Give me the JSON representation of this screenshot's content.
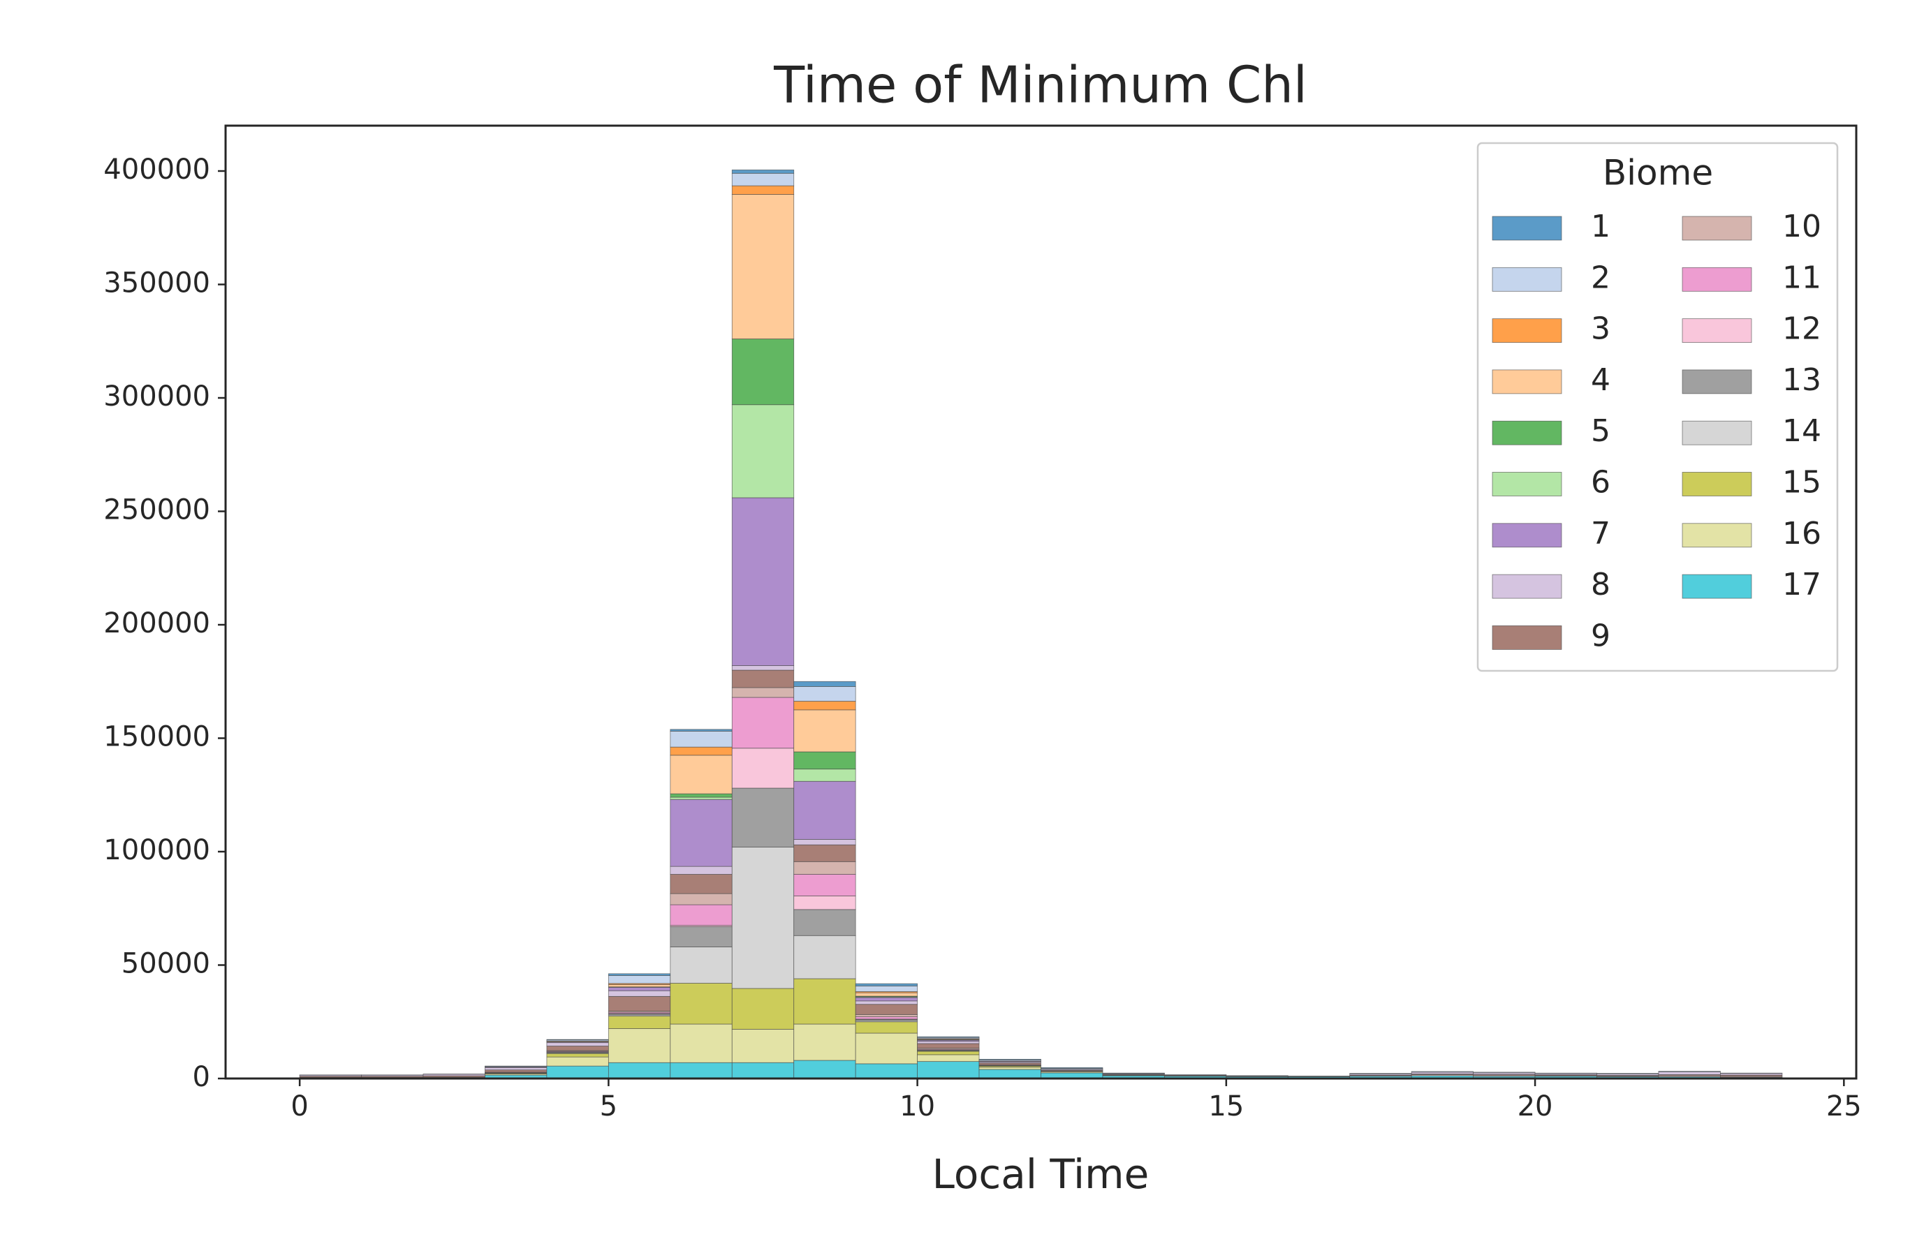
{
  "chart_data": {
    "type": "histogram",
    "title": "Time of Minimum Chl",
    "xlabel": "Local Time",
    "legend_title": "Biome",
    "legend_loc": "upper right",
    "bins": [
      0,
      1,
      2,
      3,
      4,
      5,
      6,
      7,
      8,
      9,
      10,
      11,
      12,
      13,
      14,
      15,
      16,
      17,
      18,
      19,
      20,
      21,
      22,
      23,
      24
    ],
    "xlim": [
      -1.2,
      25.2
    ],
    "ylim": [
      0,
      420000
    ],
    "xticks": [
      0,
      5,
      10,
      15,
      20,
      25
    ],
    "yticks": [
      0,
      50000,
      100000,
      150000,
      200000,
      250000,
      300000,
      350000,
      400000
    ],
    "stacked": true,
    "series": [
      {
        "name": "1",
        "color": "#5b9bc8",
        "values": [
          0,
          0,
          0,
          100,
          200,
          800,
          800,
          1500,
          2200,
          1000,
          300,
          300,
          300,
          100,
          0,
          0,
          0,
          0,
          0,
          0,
          0,
          0,
          0,
          0
        ]
      },
      {
        "name": "2",
        "color": "#c5d5ed",
        "values": [
          100,
          100,
          100,
          300,
          500,
          3500,
          7000,
          5500,
          6500,
          2500,
          500,
          500,
          400,
          200,
          200,
          200,
          100,
          300,
          300,
          300,
          300,
          300,
          300,
          200
        ]
      },
      {
        "name": "3",
        "color": "#ffa04a",
        "values": [
          0,
          0,
          0,
          0,
          100,
          500,
          3600,
          3800,
          3800,
          500,
          200,
          0,
          0,
          0,
          0,
          0,
          0,
          0,
          0,
          0,
          0,
          0,
          0,
          0
        ]
      },
      {
        "name": "4",
        "color": "#ffcb99",
        "values": [
          0,
          0,
          0,
          0,
          300,
          1000,
          17000,
          63700,
          18500,
          1500,
          300,
          100,
          0,
          0,
          0,
          0,
          0,
          0,
          0,
          0,
          0,
          0,
          0,
          0
        ]
      },
      {
        "name": "5",
        "color": "#62b762",
        "values": [
          0,
          0,
          0,
          0,
          0,
          100,
          1500,
          29000,
          7600,
          300,
          100,
          0,
          0,
          0,
          0,
          0,
          0,
          0,
          0,
          0,
          0,
          0,
          0,
          0
        ]
      },
      {
        "name": "6",
        "color": "#b3e6a6",
        "values": [
          0,
          0,
          0,
          0,
          0,
          100,
          1000,
          41000,
          5400,
          300,
          100,
          0,
          0,
          0,
          0,
          0,
          0,
          0,
          0,
          0,
          0,
          0,
          0,
          0
        ]
      },
      {
        "name": "7",
        "color": "#ae8dcc",
        "values": [
          0,
          0,
          0,
          300,
          300,
          1500,
          29500,
          74000,
          25600,
          1500,
          500,
          300,
          100,
          0,
          0,
          0,
          0,
          0,
          0,
          0,
          0,
          0,
          0,
          0
        ]
      },
      {
        "name": "8",
        "color": "#d5c4e0",
        "values": [
          500,
          500,
          700,
          1000,
          1500,
          2500,
          3500,
          2000,
          2400,
          1500,
          1000,
          500,
          400,
          300,
          200,
          100,
          100,
          500,
          800,
          700,
          500,
          600,
          1200,
          700
        ]
      },
      {
        "name": "9",
        "color": "#a87f76",
        "values": [
          500,
          500,
          600,
          1000,
          2000,
          6500,
          8500,
          7700,
          7400,
          4500,
          2000,
          800,
          300,
          200,
          100,
          0,
          0,
          200,
          300,
          300,
          300,
          300,
          400,
          500
        ]
      },
      {
        "name": "10",
        "color": "#d5b4ae",
        "values": [
          300,
          300,
          300,
          200,
          300,
          500,
          4900,
          4300,
          5600,
          1000,
          500,
          200,
          100,
          100,
          100,
          100,
          100,
          300,
          500,
          500,
          300,
          300,
          500,
          400
        ]
      },
      {
        "name": "11",
        "color": "#ed9dd0",
        "values": [
          0,
          0,
          0,
          100,
          300,
          500,
          9100,
          22400,
          9500,
          1000,
          300,
          100,
          0,
          0,
          0,
          0,
          0,
          0,
          0,
          0,
          0,
          0,
          0,
          0
        ]
      },
      {
        "name": "12",
        "color": "#f9c6db",
        "values": [
          0,
          0,
          0,
          0,
          100,
          200,
          500,
          17600,
          6000,
          200,
          100,
          0,
          0,
          0,
          0,
          0,
          0,
          0,
          0,
          0,
          0,
          0,
          0,
          0
        ]
      },
      {
        "name": "13",
        "color": "#a0a0a0",
        "values": [
          0,
          0,
          0,
          100,
          300,
          500,
          9000,
          26000,
          11500,
          500,
          300,
          100,
          0,
          0,
          0,
          0,
          0,
          0,
          0,
          0,
          0,
          0,
          0,
          0
        ]
      },
      {
        "name": "14",
        "color": "#d6d6d6",
        "values": [
          0,
          0,
          0,
          100,
          300,
          500,
          16000,
          62300,
          19000,
          500,
          200,
          100,
          0,
          0,
          0,
          0,
          0,
          0,
          0,
          0,
          0,
          0,
          0,
          0
        ]
      },
      {
        "name": "15",
        "color": "#cccc5a",
        "values": [
          0,
          0,
          0,
          300,
          1500,
          5500,
          18000,
          18000,
          20000,
          5000,
          1500,
          500,
          200,
          100,
          0,
          0,
          0,
          0,
          0,
          0,
          0,
          0,
          0,
          0
        ]
      },
      {
        "name": "16",
        "color": "#e3e3a6",
        "values": [
          0,
          0,
          0,
          500,
          4000,
          15000,
          17000,
          14700,
          16000,
          13500,
          3000,
          1000,
          500,
          200,
          100,
          100,
          0,
          0,
          0,
          0,
          0,
          0,
          0,
          0
        ]
      },
      {
        "name": "17",
        "color": "#51cedc",
        "values": [
          200,
          200,
          300,
          1500,
          5500,
          7000,
          7000,
          7000,
          8000,
          6500,
          7500,
          4000,
          2500,
          1200,
          1000,
          800,
          800,
          1000,
          1200,
          1000,
          1000,
          800,
          800,
          600
        ]
      }
    ]
  }
}
